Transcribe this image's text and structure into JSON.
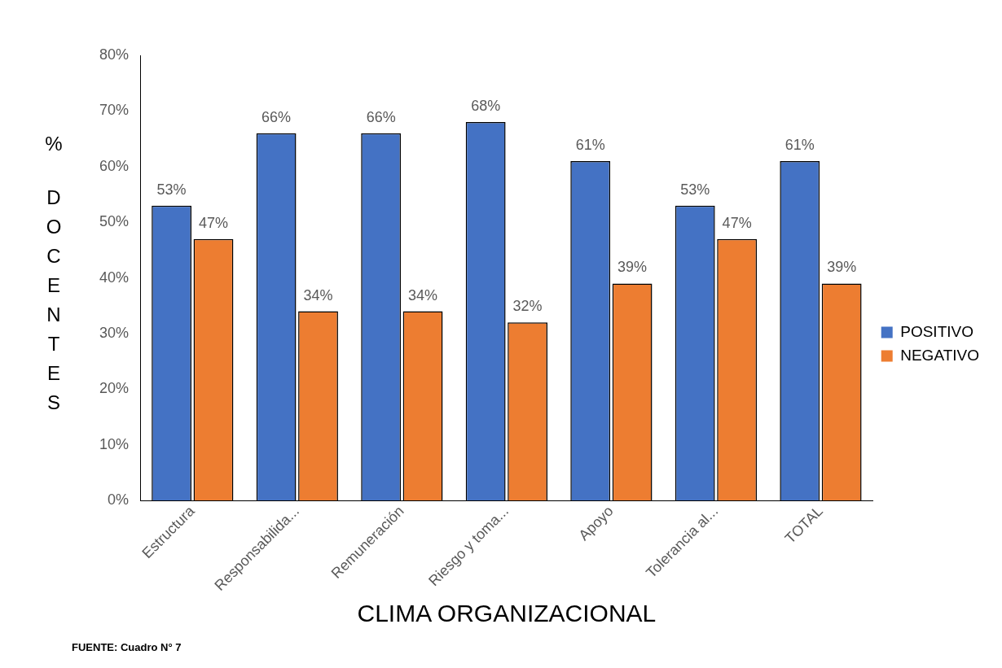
{
  "chart_data": {
    "type": "bar",
    "xlabel": "CLIMA ORGANIZACIONAL",
    "ylabel": "% DOCENTES",
    "categories": [
      "Estructura",
      "Responsabilida...",
      "Remuneración",
      "Riesgo y toma...",
      "Apoyo",
      "Tolerancia al...",
      "TOTAL"
    ],
    "series": [
      {
        "name": "POSITIVO",
        "color": "#4472c4",
        "values": [
          53,
          66,
          66,
          68,
          61,
          53,
          61
        ],
        "value_labels": [
          "53%",
          "66%",
          "66%",
          "68%",
          "61%",
          "53%",
          "61%"
        ]
      },
      {
        "name": "NEGATIVO",
        "color": "#ed7d31",
        "values": [
          47,
          34,
          34,
          32,
          39,
          47,
          39
        ],
        "value_labels": [
          "47%",
          "34%",
          "34%",
          "32%",
          "39%",
          "47%",
          "39%"
        ]
      }
    ],
    "ylim": [
      0,
      80
    ],
    "yticks": [
      {
        "value": 0,
        "label": "0%"
      },
      {
        "value": 10,
        "label": "10%"
      },
      {
        "value": 20,
        "label": "20%"
      },
      {
        "value": 30,
        "label": "30%"
      },
      {
        "value": 40,
        "label": "40%"
      },
      {
        "value": 50,
        "label": "50%"
      },
      {
        "value": 60,
        "label": "60%"
      },
      {
        "value": 70,
        "label": "70%"
      },
      {
        "value": 80,
        "label": "80%"
      }
    ],
    "grid": false,
    "legend": "right",
    "annotations": [
      "FUENTE: Cuadro N° 7"
    ]
  }
}
